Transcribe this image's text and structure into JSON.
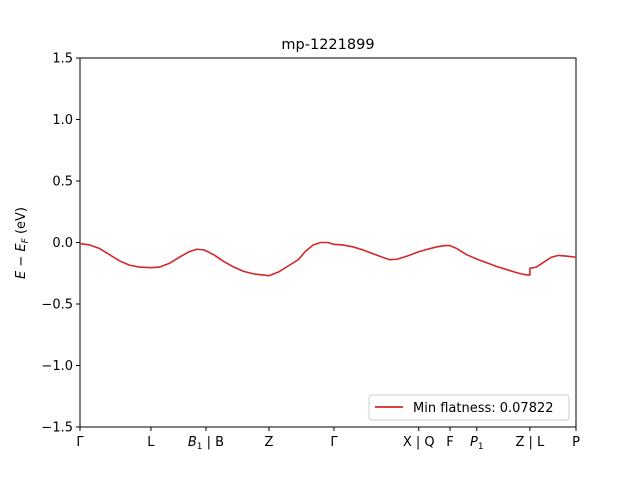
{
  "chart_data": {
    "type": "line",
    "title": "mp-1221899",
    "ylabel": "E − E_F (eV)",
    "ylim": [
      -1.5,
      1.5
    ],
    "yticks": [
      {
        "value": 1.5,
        "label": "1.5"
      },
      {
        "value": 1.0,
        "label": "1.0"
      },
      {
        "value": 0.5,
        "label": "0.5"
      },
      {
        "value": 0.0,
        "label": "0.0"
      },
      {
        "value": -0.5,
        "label": "−0.5"
      },
      {
        "value": -1.0,
        "label": "−1.0"
      },
      {
        "value": -1.5,
        "label": "−1.5"
      }
    ],
    "xlim": [
      0,
      1
    ],
    "kpoints": [
      {
        "pos": 0.0,
        "label": "Γ",
        "sub": ""
      },
      {
        "pos": 0.143,
        "label": "L",
        "sub": ""
      },
      {
        "pos": 0.254,
        "label": "B",
        "sub": "1",
        "suffix": " | B"
      },
      {
        "pos": 0.381,
        "label": "Z",
        "sub": ""
      },
      {
        "pos": 0.512,
        "label": "Γ",
        "sub": ""
      },
      {
        "pos": 0.683,
        "label": "X | Q",
        "sub": ""
      },
      {
        "pos": 0.746,
        "label": "F",
        "sub": ""
      },
      {
        "pos": 0.8,
        "label": "P",
        "sub": "1"
      },
      {
        "pos": 0.907,
        "label": "Z | L",
        "sub": ""
      },
      {
        "pos": 1.0,
        "label": "P",
        "sub": ""
      }
    ],
    "series": [
      {
        "name": "Min flatness: 0.07822",
        "color": "#d62728",
        "points": [
          [
            0.0,
            -0.01
          ],
          [
            0.02,
            -0.02
          ],
          [
            0.04,
            -0.05
          ],
          [
            0.06,
            -0.1
          ],
          [
            0.08,
            -0.15
          ],
          [
            0.1,
            -0.185
          ],
          [
            0.12,
            -0.2
          ],
          [
            0.143,
            -0.205
          ],
          [
            0.16,
            -0.2
          ],
          [
            0.18,
            -0.17
          ],
          [
            0.2,
            -0.12
          ],
          [
            0.22,
            -0.075
          ],
          [
            0.235,
            -0.055
          ],
          [
            0.25,
            -0.06
          ],
          [
            0.27,
            -0.1
          ],
          [
            0.29,
            -0.155
          ],
          [
            0.31,
            -0.2
          ],
          [
            0.33,
            -0.235
          ],
          [
            0.35,
            -0.255
          ],
          [
            0.37,
            -0.265
          ],
          [
            0.381,
            -0.27
          ],
          [
            0.4,
            -0.24
          ],
          [
            0.42,
            -0.19
          ],
          [
            0.44,
            -0.14
          ],
          [
            0.455,
            -0.07
          ],
          [
            0.47,
            -0.02
          ],
          [
            0.485,
            0.0
          ],
          [
            0.5,
            0.0
          ],
          [
            0.512,
            -0.015
          ],
          [
            0.53,
            -0.02
          ],
          [
            0.55,
            -0.035
          ],
          [
            0.57,
            -0.06
          ],
          [
            0.59,
            -0.09
          ],
          [
            0.61,
            -0.12
          ],
          [
            0.625,
            -0.14
          ],
          [
            0.64,
            -0.135
          ],
          [
            0.66,
            -0.11
          ],
          [
            0.683,
            -0.075
          ],
          [
            0.7,
            -0.055
          ],
          [
            0.72,
            -0.035
          ],
          [
            0.735,
            -0.025
          ],
          [
            0.746,
            -0.025
          ],
          [
            0.76,
            -0.05
          ],
          [
            0.78,
            -0.1
          ],
          [
            0.8,
            -0.135
          ],
          [
            0.82,
            -0.165
          ],
          [
            0.84,
            -0.195
          ],
          [
            0.86,
            -0.22
          ],
          [
            0.88,
            -0.245
          ],
          [
            0.895,
            -0.26
          ],
          [
            0.907,
            -0.265
          ],
          [
            0.907,
            -0.21
          ],
          [
            0.92,
            -0.2
          ],
          [
            0.935,
            -0.16
          ],
          [
            0.95,
            -0.12
          ],
          [
            0.965,
            -0.105
          ],
          [
            0.98,
            -0.11
          ],
          [
            1.0,
            -0.12
          ]
        ]
      }
    ],
    "legend": {
      "placement": "lower-right",
      "text": "Min flatness: 0.07822"
    }
  }
}
